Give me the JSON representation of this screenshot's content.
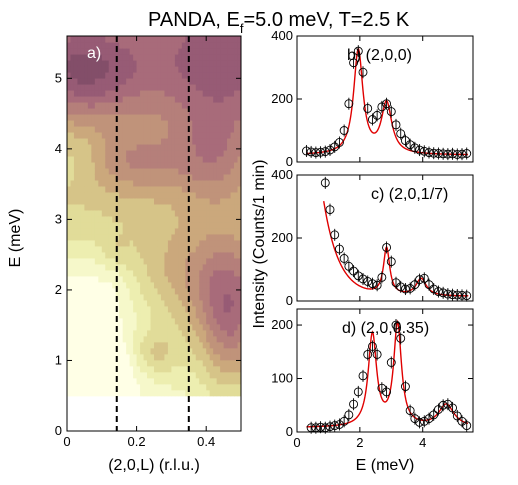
{
  "figure": {
    "title_main": "PANDA, E",
    "title_sub": "f",
    "title_rest": "=5.0 meV, T=2.5 K"
  },
  "chart_data": [
    {
      "type": "heatmap",
      "panel_label": "a)",
      "xlabel": "(2,0,L) (r.l.u.)",
      "ylabel": "E (meV)",
      "xlim": [
        0,
        0.5
      ],
      "ylim": [
        0,
        5.6
      ],
      "x_ticks": [
        "0",
        "0.2",
        "0.4"
      ],
      "x_tick_values": [
        0,
        0.2,
        0.4
      ],
      "y_ticks": [
        "0",
        "1",
        "2",
        "3",
        "4",
        "5"
      ],
      "y_tick_values": [
        0,
        1,
        2,
        3,
        4,
        5
      ],
      "data_ymin": 0.5,
      "dashed_lines_x": [
        0.143,
        0.35
      ],
      "colormap": [
        "#ffffe6",
        "#f0f3b6",
        "#dcd48f",
        "#c9a47a",
        "#b7827a",
        "#a0607a",
        "#7d4a66",
        "#3e2233"
      ]
    },
    {
      "type": "scatter",
      "panel_label": "b) (2,0,0)",
      "xlim": [
        0,
        5.6
      ],
      "ylim": [
        0,
        400
      ],
      "y_ticks": [
        "0",
        "200",
        "400"
      ],
      "y_tick_values": [
        0,
        200,
        400
      ],
      "background": 22,
      "peaks": [
        [
          1.95,
          330,
          0.18
        ],
        [
          2.85,
          160,
          0.2
        ]
      ],
      "points": [
        [
          0.3,
          35
        ],
        [
          0.45,
          32
        ],
        [
          0.6,
          30
        ],
        [
          0.75,
          31
        ],
        [
          0.9,
          33
        ],
        [
          1.05,
          38
        ],
        [
          1.2,
          48
        ],
        [
          1.35,
          62
        ],
        [
          1.5,
          100
        ],
        [
          1.65,
          185
        ],
        [
          1.8,
          315
        ],
        [
          1.95,
          352
        ],
        [
          2.1,
          285
        ],
        [
          2.25,
          170
        ],
        [
          2.4,
          135
        ],
        [
          2.55,
          148
        ],
        [
          2.7,
          175
        ],
        [
          2.85,
          185
        ],
        [
          3.0,
          160
        ],
        [
          3.15,
          118
        ],
        [
          3.3,
          90
        ],
        [
          3.45,
          68
        ],
        [
          3.6,
          55
        ],
        [
          3.75,
          45
        ],
        [
          3.9,
          38
        ],
        [
          4.05,
          34
        ],
        [
          4.2,
          30
        ],
        [
          4.35,
          28
        ],
        [
          4.5,
          27
        ],
        [
          4.65,
          26
        ],
        [
          4.8,
          25
        ],
        [
          4.95,
          26
        ],
        [
          5.1,
          24
        ],
        [
          5.25,
          25
        ],
        [
          5.4,
          27
        ]
      ]
    },
    {
      "type": "scatter",
      "panel_label": "c) (2,0,1/7)",
      "xlim": [
        0,
        5.6
      ],
      "ylim": [
        0,
        400
      ],
      "y_ticks": [
        "0",
        "200",
        "400"
      ],
      "y_tick_values": [
        0,
        200,
        400
      ],
      "background": 15,
      "tail_amp": 80,
      "tail_decay": 1.4,
      "peaks": [
        [
          2.85,
          150,
          0.12
        ],
        [
          3.95,
          55,
          0.2
        ]
      ],
      "points": [
        [
          0.9,
          375
        ],
        [
          1.05,
          290
        ],
        [
          1.2,
          210
        ],
        [
          1.35,
          165
        ],
        [
          1.5,
          135
        ],
        [
          1.65,
          110
        ],
        [
          1.8,
          95
        ],
        [
          1.95,
          80
        ],
        [
          2.1,
          70
        ],
        [
          2.25,
          62
        ],
        [
          2.4,
          55
        ],
        [
          2.55,
          50
        ],
        [
          2.7,
          75
        ],
        [
          2.85,
          170
        ],
        [
          3.0,
          125
        ],
        [
          3.15,
          58
        ],
        [
          3.3,
          45
        ],
        [
          3.45,
          38
        ],
        [
          3.6,
          40
        ],
        [
          3.75,
          52
        ],
        [
          3.9,
          68
        ],
        [
          4.05,
          72
        ],
        [
          4.2,
          52
        ],
        [
          4.35,
          38
        ],
        [
          4.5,
          30
        ],
        [
          4.65,
          26
        ],
        [
          4.8,
          22
        ],
        [
          4.95,
          20
        ],
        [
          5.1,
          19
        ],
        [
          5.25,
          18
        ],
        [
          5.4,
          17
        ]
      ]
    },
    {
      "type": "scatter",
      "panel_label": "d) (2,0,0.35)",
      "xlabel": "E (meV)",
      "ylabel": "Intensity (Counts/1 min)",
      "xlim": [
        0,
        5.6
      ],
      "ylim": [
        0,
        230
      ],
      "x_ticks": [
        "0",
        "2",
        "4"
      ],
      "x_tick_values": [
        0,
        2,
        4
      ],
      "y_ticks": [
        "0",
        "100",
        "200"
      ],
      "y_tick_values": [
        0,
        100,
        200
      ],
      "background": 8,
      "peaks": [
        [
          2.4,
          172,
          0.16
        ],
        [
          3.2,
          190,
          0.15
        ],
        [
          4.75,
          42,
          0.3
        ]
      ],
      "points": [
        [
          0.45,
          8
        ],
        [
          0.6,
          8
        ],
        [
          0.75,
          9
        ],
        [
          0.9,
          8
        ],
        [
          1.05,
          10
        ],
        [
          1.2,
          12
        ],
        [
          1.35,
          14
        ],
        [
          1.5,
          20
        ],
        [
          1.65,
          32
        ],
        [
          1.8,
          52
        ],
        [
          1.95,
          75
        ],
        [
          2.1,
          105
        ],
        [
          2.25,
          145
        ],
        [
          2.4,
          160
        ],
        [
          2.55,
          145
        ],
        [
          2.7,
          82
        ],
        [
          2.85,
          75
        ],
        [
          3.0,
          130
        ],
        [
          3.15,
          200
        ],
        [
          3.3,
          175
        ],
        [
          3.45,
          85
        ],
        [
          3.6,
          40
        ],
        [
          3.75,
          25
        ],
        [
          3.9,
          18
        ],
        [
          4.05,
          20
        ],
        [
          4.2,
          25
        ],
        [
          4.35,
          32
        ],
        [
          4.5,
          42
        ],
        [
          4.65,
          50
        ],
        [
          4.8,
          52
        ],
        [
          4.95,
          45
        ],
        [
          5.1,
          30
        ],
        [
          5.25,
          20
        ],
        [
          5.4,
          12
        ]
      ]
    }
  ]
}
